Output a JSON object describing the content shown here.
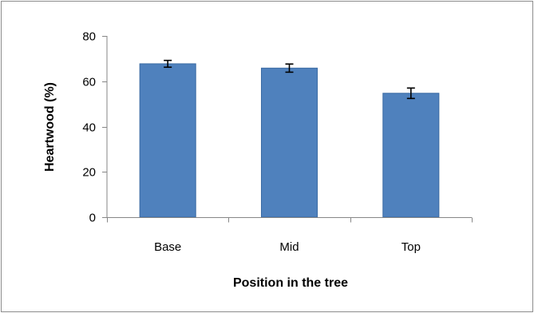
{
  "chart_data": {
    "type": "bar",
    "categories": [
      "Base",
      "Mid",
      "Top"
    ],
    "values": [
      67.7,
      65.8,
      54.7
    ],
    "errors": [
      1.5,
      1.8,
      2.3
    ],
    "xlabel": "Position in the tree",
    "ylabel": "Heartwood (%)",
    "ylim": [
      0,
      80
    ],
    "yticks": [
      0,
      20,
      40,
      60,
      80
    ],
    "ytick_labels": [
      "0",
      "20",
      "40",
      "60",
      "80"
    ],
    "grid": false,
    "legend": "none",
    "bar_color": "#4f81bd",
    "bar_edge_color": "#3a6aa3",
    "error_bar_color": "#000000"
  }
}
